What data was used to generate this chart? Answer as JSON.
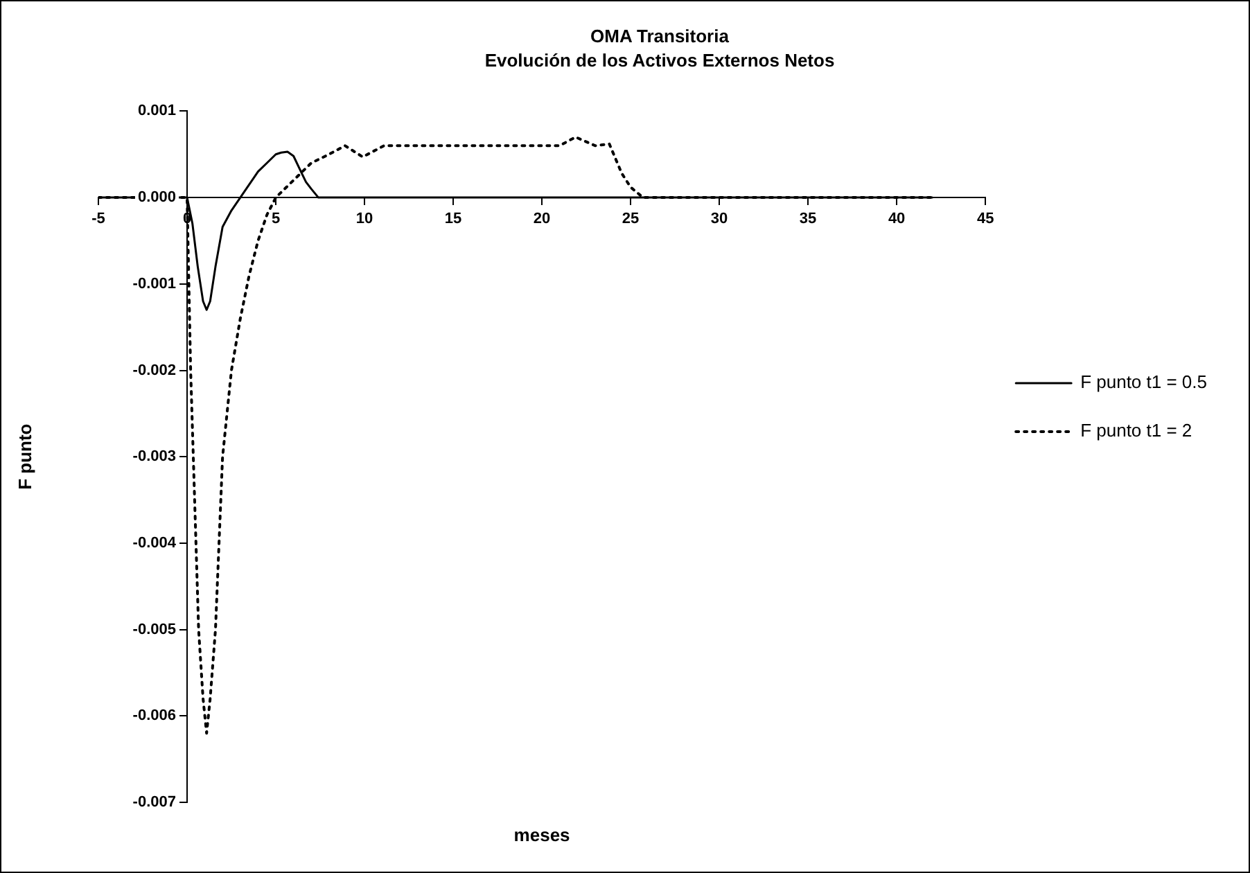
{
  "chart_data": {
    "type": "line",
    "title": "OMA Transitoria",
    "subtitle": "Evolución de los Activos Externos Netos",
    "xlabel": "meses",
    "ylabel": "F punto",
    "xlim": [
      -5,
      45
    ],
    "xticks": [
      -5,
      0,
      5,
      10,
      15,
      20,
      25,
      30,
      35,
      40,
      45
    ],
    "ylim": [
      -0.007,
      0.001
    ],
    "yticks": [
      0.001,
      {
        "value": 0,
        "label": "0.000"
      },
      -0.001,
      -0.002,
      -0.003,
      -0.004,
      -0.005,
      -0.006,
      -0.007
    ],
    "grid": false,
    "legend": "right",
    "marker": "none",
    "series": [
      {
        "name": "F punto t1 = 0.5",
        "color": "#000000",
        "line_style": "solid",
        "x": [
          -5,
          -1,
          -0.5,
          0,
          0.3,
          0.6,
          0.9,
          1.1,
          1.3,
          1.6,
          2.0,
          2.5,
          3.0,
          3.5,
          4.0,
          4.5,
          5.0,
          5.3,
          5.66,
          6.0,
          6.3,
          6.7,
          7.0,
          7.4,
          8,
          10,
          20,
          30,
          42
        ],
        "values": [
          0,
          0,
          0,
          0,
          -0.0003,
          -0.0008,
          -0.0012,
          -0.0013,
          -0.0012,
          -0.0008,
          -0.00034,
          -0.00015,
          0,
          0.00015,
          0.0003,
          0.0004,
          0.0005,
          0.00052,
          0.00053,
          0.00048,
          0.00035,
          0.00018,
          0.0001,
          0,
          0,
          0,
          0,
          0,
          0
        ]
      },
      {
        "name": "F punto t1 = 2",
        "color": "#000000",
        "line_style": "dotted",
        "x": [
          -5,
          0,
          0.1,
          0.2,
          0.35,
          0.5,
          0.65,
          0.9,
          1.1,
          1.3,
          1.6,
          1.8,
          2.0,
          2.5,
          3.0,
          3.5,
          4.0,
          4.5,
          5.0,
          5.5,
          6.3,
          7,
          8,
          8.9,
          9.9,
          11.1,
          15,
          21,
          21.9,
          23.0,
          23.8,
          24.5,
          25.0,
          25.7,
          26,
          30,
          42
        ],
        "values": [
          0,
          0,
          -0.001,
          -0.002,
          -0.003,
          -0.004,
          -0.005,
          -0.0058,
          -0.0062,
          -0.0058,
          -0.005,
          -0.004,
          -0.003,
          -0.002,
          -0.0014,
          -0.0009,
          -0.0005,
          -0.0002,
          0,
          0.0001,
          0.00026,
          0.0004,
          0.0005,
          0.0006,
          0.00047,
          0.0006,
          0.0006,
          0.0006,
          0.0007,
          0.0006,
          0.00062,
          0.00028,
          0.00012,
          0,
          0,
          0,
          0
        ]
      }
    ]
  }
}
